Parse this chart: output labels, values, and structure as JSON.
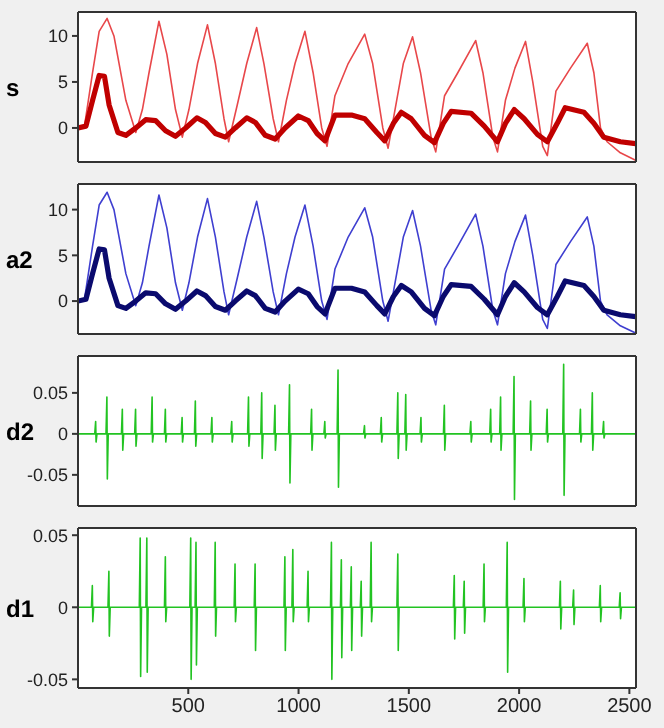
{
  "chart_data": [
    {
      "type": "line",
      "ylabel": "s",
      "xlim": [
        0,
        2530
      ],
      "xticks": [
        500,
        1000,
        1500,
        2000,
        2500
      ],
      "ylim": [
        -3.7,
        12.6
      ],
      "yticks": [
        0,
        5,
        10
      ],
      "tick_labels": "y",
      "series": [
        {
          "color": "#e8474a",
          "x": [
            0,
            30,
            66,
            96,
            132,
            163,
            217,
            262,
            292,
            322,
            367,
            403,
            442,
            473,
            503,
            542,
            587,
            623,
            662,
            683,
            722,
            765,
            810,
            843,
            885,
            909,
            945,
            984,
            1029,
            1066,
            1105,
            1129,
            1165,
            1225,
            1300,
            1336,
            1382,
            1406,
            1445,
            1475,
            1517,
            1553,
            1601,
            1622,
            1662,
            1722,
            1803,
            1836,
            1881,
            1902,
            1938,
            1981,
            2029,
            2062,
            2107,
            2128,
            2167,
            2233,
            2309,
            2339,
            2369,
            2399,
            2459,
            2528
          ],
          "values": [
            0,
            0.3,
            6,
            10.5,
            11.9,
            10,
            3,
            -0.5,
            2,
            6,
            11.6,
            8,
            2,
            -1,
            2,
            7,
            11.2,
            7,
            1,
            -1.5,
            2.5,
            7,
            10.9,
            7,
            1,
            -1.5,
            3,
            7,
            10.5,
            6,
            0,
            -2,
            3.5,
            7,
            10.2,
            7,
            0,
            -2.2,
            3,
            7,
            9.9,
            6,
            -1,
            -2.6,
            3.5,
            6,
            9.5,
            6,
            -1,
            -2.6,
            3,
            6.5,
            9.4,
            5,
            -2,
            -3,
            4,
            6.5,
            9.2,
            6,
            0,
            -1.5,
            -2.7,
            -3.5
          ]
        },
        {
          "color": "#c00000",
          "x": [
            0,
            36,
            66,
            96,
            120,
            141,
            181,
            217,
            262,
            307,
            352,
            397,
            442,
            488,
            539,
            578,
            623,
            668,
            713,
            765,
            804,
            849,
            894,
            939,
            999,
            1044,
            1084,
            1120,
            1165,
            1240,
            1300,
            1355,
            1391,
            1430,
            1466,
            1511,
            1571,
            1616,
            1656,
            1692,
            1782,
            1842,
            1902,
            1938,
            1978,
            2023,
            2083,
            2128,
            2173,
            2209,
            2294,
            2339,
            2384,
            2459,
            2528
          ],
          "values": [
            0,
            0.2,
            3,
            5.7,
            5.6,
            2.5,
            -0.5,
            -0.8,
            0,
            0.9,
            0.8,
            -0.3,
            -0.9,
            0,
            1.1,
            0.6,
            -0.6,
            -1,
            0,
            1.1,
            0.6,
            -0.8,
            -1.2,
            0,
            1.3,
            0.8,
            -0.6,
            -1.4,
            1.4,
            1.4,
            1,
            -0.5,
            -1.4,
            0.5,
            1.7,
            1,
            -0.8,
            -1.6,
            0.5,
            1.8,
            1.6,
            0.2,
            -1.5,
            0.5,
            2,
            1,
            -0.7,
            -1.5,
            0.5,
            2.2,
            1.7,
            0.5,
            -1,
            -1.5,
            -1.7
          ]
        }
      ]
    },
    {
      "type": "line",
      "ylabel": "a2",
      "xlim": [
        0,
        2530
      ],
      "xticks": [
        500,
        1000,
        1500,
        2000,
        2500
      ],
      "ylim": [
        -3.6,
        12.8
      ],
      "yticks": [
        0,
        5,
        10
      ],
      "tick_labels": "y",
      "series": [
        {
          "color": "#3f3fd0",
          "x": [
            0,
            30,
            66,
            96,
            132,
            163,
            217,
            262,
            292,
            322,
            367,
            403,
            442,
            473,
            503,
            542,
            587,
            623,
            662,
            683,
            722,
            765,
            810,
            843,
            885,
            909,
            945,
            984,
            1029,
            1066,
            1105,
            1129,
            1165,
            1225,
            1300,
            1336,
            1382,
            1406,
            1445,
            1475,
            1517,
            1553,
            1601,
            1622,
            1662,
            1722,
            1803,
            1836,
            1881,
            1902,
            1938,
            1981,
            2029,
            2062,
            2107,
            2128,
            2167,
            2233,
            2309,
            2339,
            2369,
            2399,
            2459,
            2528
          ],
          "values": [
            0,
            0.3,
            6,
            10.5,
            11.9,
            10,
            3,
            -0.5,
            2,
            6,
            11.6,
            8,
            2,
            -1,
            2,
            7,
            11.2,
            7,
            1,
            -1.5,
            2.5,
            7,
            10.9,
            7,
            1,
            -1.5,
            3,
            7,
            10.5,
            6,
            0,
            -2,
            3.5,
            7,
            10.2,
            7,
            0,
            -2.2,
            3,
            7,
            9.9,
            6,
            -1,
            -2.6,
            3.5,
            6,
            9.5,
            6,
            -1,
            -2.6,
            3,
            6.5,
            9.4,
            5,
            -2,
            -3,
            4,
            6.5,
            9.2,
            6,
            0,
            -1.5,
            -2.7,
            -3.5
          ]
        },
        {
          "color": "#0a0a6e",
          "x": [
            0,
            36,
            66,
            96,
            120,
            141,
            181,
            217,
            262,
            307,
            352,
            397,
            442,
            488,
            539,
            578,
            623,
            668,
            713,
            765,
            804,
            849,
            894,
            939,
            999,
            1044,
            1084,
            1120,
            1165,
            1240,
            1300,
            1355,
            1391,
            1430,
            1466,
            1511,
            1571,
            1616,
            1656,
            1692,
            1782,
            1842,
            1902,
            1938,
            1978,
            2023,
            2083,
            2128,
            2173,
            2209,
            2294,
            2339,
            2384,
            2459,
            2528
          ],
          "values": [
            0,
            0.2,
            3,
            5.7,
            5.6,
            2.5,
            -0.5,
            -0.8,
            0,
            0.9,
            0.8,
            -0.3,
            -0.9,
            0,
            1.1,
            0.6,
            -0.6,
            -1,
            0,
            1.1,
            0.6,
            -0.8,
            -1.2,
            0,
            1.3,
            0.8,
            -0.6,
            -1.4,
            1.4,
            1.4,
            1,
            -0.5,
            -1.4,
            0.5,
            1.7,
            1,
            -0.8,
            -1.6,
            0.5,
            1.8,
            1.6,
            0.2,
            -1.5,
            0.5,
            2,
            1,
            -0.7,
            -1.5,
            0.5,
            2.2,
            1.7,
            0.5,
            -1,
            -1.5,
            -1.7
          ]
        }
      ]
    },
    {
      "type": "line",
      "ylabel": "d2",
      "xlim": [
        0,
        2530
      ],
      "xticks": [
        500,
        1000,
        1500,
        2000,
        2500
      ],
      "ylim": [
        -0.088,
        0.095
      ],
      "yticks": [
        -0.05,
        0,
        0.05
      ],
      "tick_labels": "y",
      "series": [
        {
          "color": "#22c322",
          "x": [
            0,
            76,
            80,
            82,
            86,
            127,
            131,
            133,
            137,
            197,
            201,
            203,
            207,
            257,
            261,
            263,
            267,
            332,
            336,
            338,
            342,
            392,
            396,
            398,
            402,
            468,
            472,
            474,
            478,
            528,
            532,
            534,
            538,
            603,
            607,
            609,
            613,
            693,
            697,
            699,
            703,
            769,
            773,
            775,
            779,
            829,
            833,
            835,
            839,
            889,
            893,
            895,
            899,
            955,
            959,
            961,
            965,
            1055,
            1059,
            1061,
            1065,
            1115,
            1119,
            1121,
            1125,
            1175,
            1179,
            1181,
            1185,
            1295,
            1299,
            1301,
            1305,
            1371,
            1375,
            1377,
            1381,
            1446,
            1450,
            1452,
            1456,
            1482,
            1486,
            1488,
            1492,
            1551,
            1555,
            1557,
            1561,
            1657,
            1661,
            1663,
            1667,
            1777,
            1781,
            1783,
            1787,
            1867,
            1871,
            1873,
            1877,
            1912,
            1916,
            1918,
            1922,
            1973,
            1977,
            1979,
            1983,
            2048,
            2052,
            2054,
            2058,
            2123,
            2127,
            2129,
            2133,
            2198,
            2202,
            2204,
            2208,
            2274,
            2278,
            2280,
            2284,
            2328,
            2332,
            2334,
            2338,
            2379,
            2383,
            2385,
            2389,
            2528
          ],
          "values": [
            0,
            0,
            0.015,
            -0.01,
            0,
            0,
            0.045,
            -0.055,
            0,
            0,
            0.03,
            -0.02,
            0,
            0,
            0.03,
            -0.015,
            0,
            0,
            0.045,
            -0.01,
            0,
            0,
            0.03,
            -0.01,
            0,
            0,
            0.02,
            -0.01,
            0,
            0,
            0.04,
            -0.015,
            0,
            0,
            0.02,
            -0.01,
            0,
            0,
            0.015,
            -0.01,
            0,
            0,
            0.045,
            -0.015,
            0,
            0,
            0.05,
            -0.03,
            0,
            0,
            0.035,
            -0.02,
            0,
            0,
            0.06,
            -0.06,
            0,
            0,
            0.03,
            -0.02,
            0,
            0,
            0.015,
            -0.005,
            0,
            0,
            0.078,
            -0.065,
            0,
            0,
            0.01,
            -0.005,
            0,
            0,
            0.02,
            -0.01,
            0,
            0,
            0.05,
            -0.03,
            0,
            0,
            0.048,
            -0.02,
            0,
            0,
            0.02,
            -0.01,
            0,
            0,
            0.035,
            -0.02,
            0,
            0,
            0.015,
            -0.01,
            0,
            0,
            0.03,
            -0.01,
            0,
            0,
            0.045,
            -0.02,
            0,
            0,
            0.07,
            -0.08,
            0,
            0,
            0.04,
            -0.02,
            0,
            0,
            0.03,
            -0.01,
            0,
            0,
            0.085,
            -0.075,
            0,
            0,
            0.03,
            -0.01,
            0,
            0,
            0.05,
            -0.02,
            0,
            0,
            0.015,
            -0.005,
            0,
            0
          ]
        }
      ]
    },
    {
      "type": "line",
      "ylabel": "d1",
      "xlim": [
        0,
        2530
      ],
      "xticks": [
        500,
        1000,
        1500,
        2000,
        2500
      ],
      "ylim": [
        -0.056,
        0.055
      ],
      "yticks": [
        -0.05,
        0,
        0.05
      ],
      "series": [
        {
          "color": "#22c322",
          "x": [
            0,
            61,
            65,
            67,
            71,
            136,
            140,
            142,
            146,
            278,
            282,
            284,
            288,
            308,
            312,
            314,
            318,
            392,
            396,
            398,
            402,
            507,
            511,
            513,
            517,
            531,
            535,
            537,
            541,
            618,
            622,
            624,
            628,
            708,
            712,
            714,
            718,
            799,
            803,
            805,
            809,
            934,
            938,
            940,
            944,
            970,
            974,
            976,
            980,
            1039,
            1043,
            1045,
            1049,
            1145,
            1149,
            1151,
            1155,
            1190,
            1194,
            1196,
            1200,
            1235,
            1239,
            1241,
            1245,
            1280,
            1284,
            1286,
            1290,
            1325,
            1329,
            1331,
            1335,
            1446,
            1450,
            1452,
            1456,
            1702,
            1706,
            1708,
            1712,
            1747,
            1751,
            1753,
            1757,
            1837,
            1841,
            1843,
            1847,
            1942,
            1946,
            1948,
            1952,
            2018,
            2022,
            2024,
            2028,
            2183,
            2187,
            2189,
            2193,
            2243,
            2247,
            2249,
            2253,
            2364,
            2368,
            2370,
            2374,
            2454,
            2458,
            2460,
            2464,
            2528
          ],
          "values": [
            0,
            0,
            0.015,
            -0.01,
            0,
            0,
            0.025,
            -0.02,
            0,
            0,
            0.048,
            -0.048,
            0,
            0,
            0.048,
            -0.045,
            0,
            0,
            0.035,
            -0.01,
            0,
            0,
            0.048,
            -0.05,
            0,
            0,
            0.045,
            -0.04,
            0,
            0,
            0.045,
            -0.02,
            0,
            0,
            0.03,
            -0.01,
            0,
            0,
            0.03,
            -0.03,
            0,
            0,
            0.035,
            -0.03,
            0,
            0,
            0.04,
            -0.01,
            0,
            0,
            0.025,
            -0.01,
            0,
            0,
            0.045,
            -0.05,
            0,
            0,
            0.033,
            -0.035,
            0,
            0,
            0.028,
            -0.03,
            0,
            0,
            0.018,
            -0.02,
            0,
            0,
            0.045,
            -0.01,
            0,
            0,
            0.037,
            -0.03,
            0,
            0,
            0.022,
            -0.022,
            0,
            0,
            0.018,
            -0.018,
            0,
            0,
            0.03,
            -0.01,
            0,
            0,
            0.045,
            -0.045,
            0,
            0,
            0.02,
            -0.01,
            0,
            0,
            0.018,
            -0.015,
            0,
            0,
            0.012,
            -0.012,
            0,
            0,
            0.015,
            -0.01,
            0,
            0,
            0.01,
            -0.008,
            0,
            0
          ]
        }
      ]
    }
  ]
}
